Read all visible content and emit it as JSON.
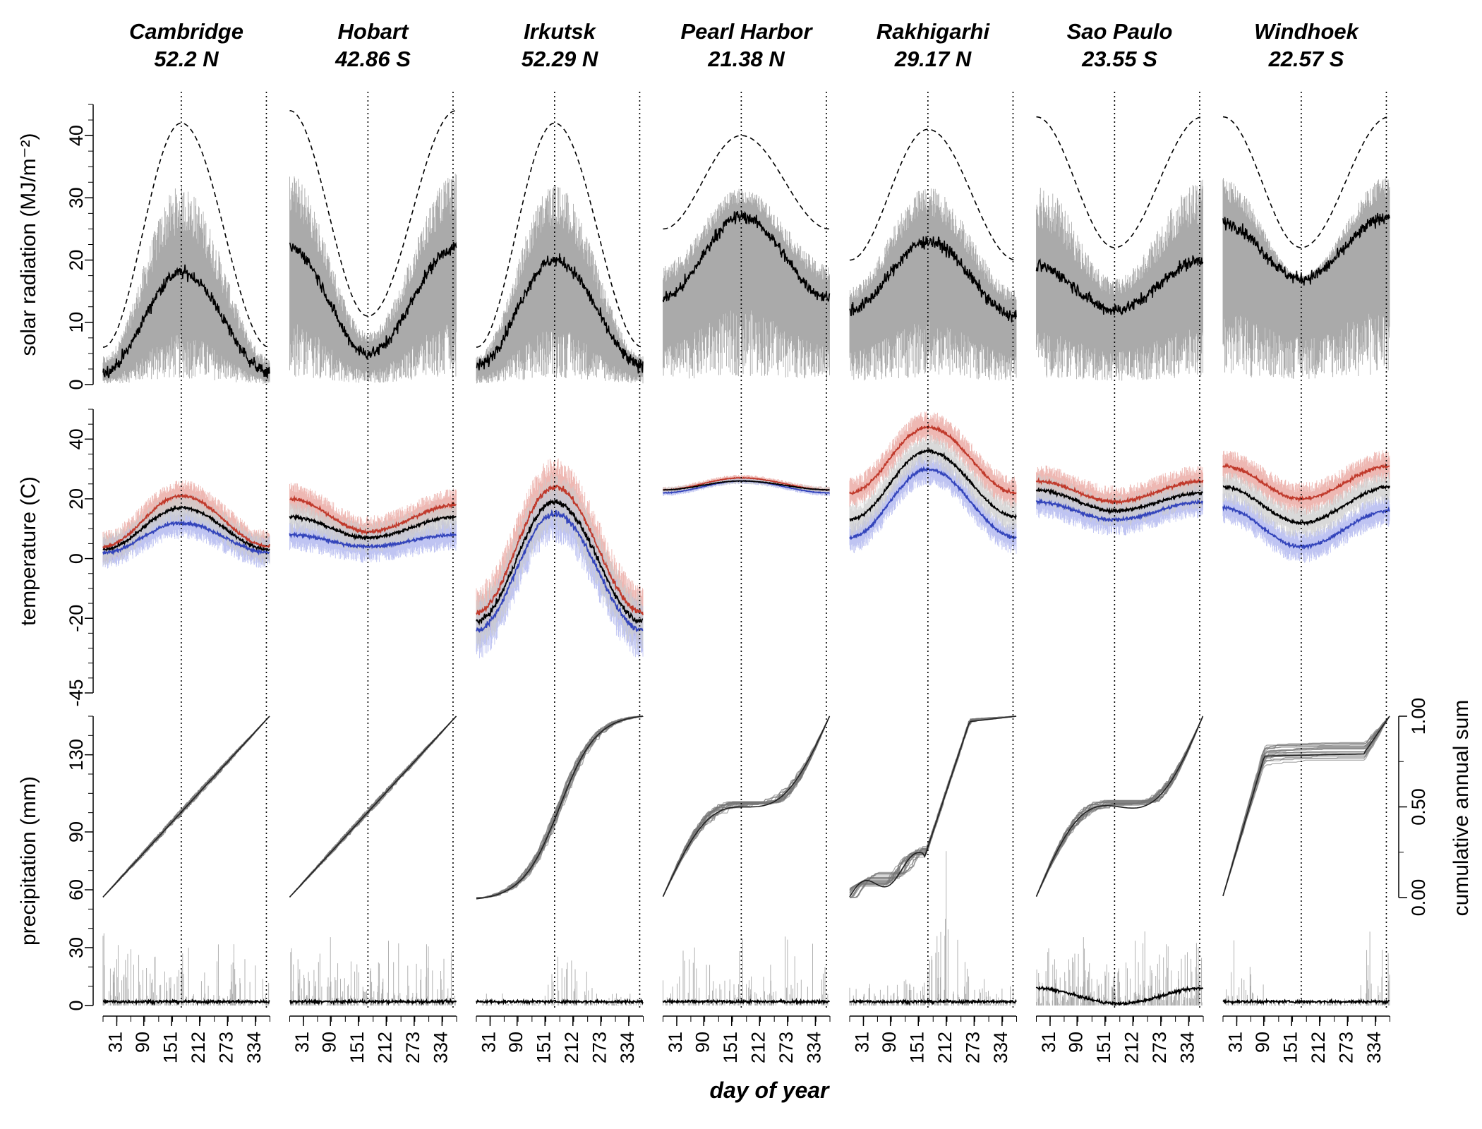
{
  "chart_data": {
    "type": "line",
    "xlabel": "day of year",
    "xticks": [
      31,
      90,
      151,
      212,
      273,
      334
    ],
    "stations": [
      {
        "name": "Cambridge",
        "lat": "52.2 N"
      },
      {
        "name": "Hobart",
        "lat": "42.86 S"
      },
      {
        "name": "Irkutsk",
        "lat": "52.29 N"
      },
      {
        "name": "Pearl Harbor",
        "lat": "21.38 N"
      },
      {
        "name": "Rakhigarhi",
        "lat": "29.17 N"
      },
      {
        "name": "Sao Paulo",
        "lat": "23.55 S"
      },
      {
        "name": "Windhoek",
        "lat": "22.57 S"
      }
    ],
    "rows": [
      {
        "key": "solar",
        "ylabel": "solar radiation (MJ/m⁻²)",
        "ylim": [
          0,
          45
        ],
        "yticks": [
          0,
          10,
          20,
          30,
          40
        ]
      },
      {
        "key": "temperature",
        "ylabel": "temperature (C)",
        "ylim": [
          -45,
          50
        ],
        "yticks": [
          -45,
          -20,
          0,
          20,
          40
        ]
      },
      {
        "key": "precip",
        "ylabel": "precipitation (mm)",
        "ylim": [
          0,
          150
        ],
        "yticks": [
          0,
          30,
          60,
          90,
          130
        ],
        "ylabel_right": "cumulative annual sum",
        "yticks_right": [
          "0.00",
          "0.50",
          "1.00"
        ]
      }
    ],
    "series": [
      {
        "station": "Cambridge",
        "solstice": 172,
        "solar_mean": [
          2,
          18,
          2
        ],
        "solar_clear": [
          6,
          42,
          6
        ],
        "tmin": [
          2,
          12,
          2
        ],
        "tmean": [
          3,
          17,
          3
        ],
        "tmax": [
          4,
          21,
          4
        ],
        "cum_shape": "linear"
      },
      {
        "station": "Hobart",
        "solstice": 172,
        "solar_mean": [
          22,
          5,
          22
        ],
        "solar_clear": [
          44,
          11,
          44
        ],
        "tmin": [
          8,
          4,
          8
        ],
        "tmean": [
          14,
          7,
          14
        ],
        "tmax": [
          20,
          9,
          18
        ],
        "cum_shape": "linear"
      },
      {
        "station": "Irkutsk",
        "solstice": 172,
        "solar_mean": [
          3,
          20,
          3
        ],
        "solar_clear": [
          6,
          42,
          6
        ],
        "tmin": [
          -24,
          15,
          -24
        ],
        "tmean": [
          -21,
          19,
          -21
        ],
        "tmax": [
          -18,
          24,
          -18
        ],
        "cum_shape": "summer"
      },
      {
        "station": "Pearl Harbor",
        "solstice": 172,
        "solar_mean": [
          14,
          27,
          14
        ],
        "solar_clear": [
          25,
          40,
          25
        ],
        "tmin": [
          22,
          26,
          22
        ],
        "tmean": [
          23,
          26,
          23
        ],
        "tmax": [
          23,
          27,
          23
        ],
        "cum_shape": "winter"
      },
      {
        "station": "Rakhigarhi",
        "solstice": 172,
        "solar_mean": [
          12,
          23,
          11
        ],
        "solar_clear": [
          20,
          41,
          20
        ],
        "tmin": [
          7,
          30,
          7
        ],
        "tmean": [
          13,
          36,
          14
        ],
        "tmax": [
          22,
          44,
          22
        ],
        "cum_shape": "monsoon"
      },
      {
        "station": "Sao Paulo",
        "solstice": 172,
        "solar_mean": [
          19,
          12,
          20
        ],
        "solar_clear": [
          43,
          22,
          43
        ],
        "tmin": [
          19,
          13,
          19
        ],
        "tmean": [
          23,
          16,
          22
        ],
        "tmax": [
          26,
          19,
          26
        ],
        "cum_shape": "wet_summer"
      },
      {
        "station": "Windhoek",
        "solstice": 172,
        "solar_mean": [
          26,
          17,
          27
        ],
        "solar_clear": [
          43,
          22,
          43
        ],
        "tmin": [
          17,
          4,
          16
        ],
        "tmean": [
          24,
          12,
          24
        ],
        "tmax": [
          31,
          20,
          31
        ],
        "cum_shape": "windhoek"
      }
    ],
    "colors": {
      "tmax": "#c0392b",
      "tmax_band": "#e8a09a",
      "tmin": "#3344bb",
      "tmin_band": "#aab0ee",
      "tmean": "#000000",
      "band_gray": "#aaaaaa",
      "cum_line": "#777777"
    }
  }
}
